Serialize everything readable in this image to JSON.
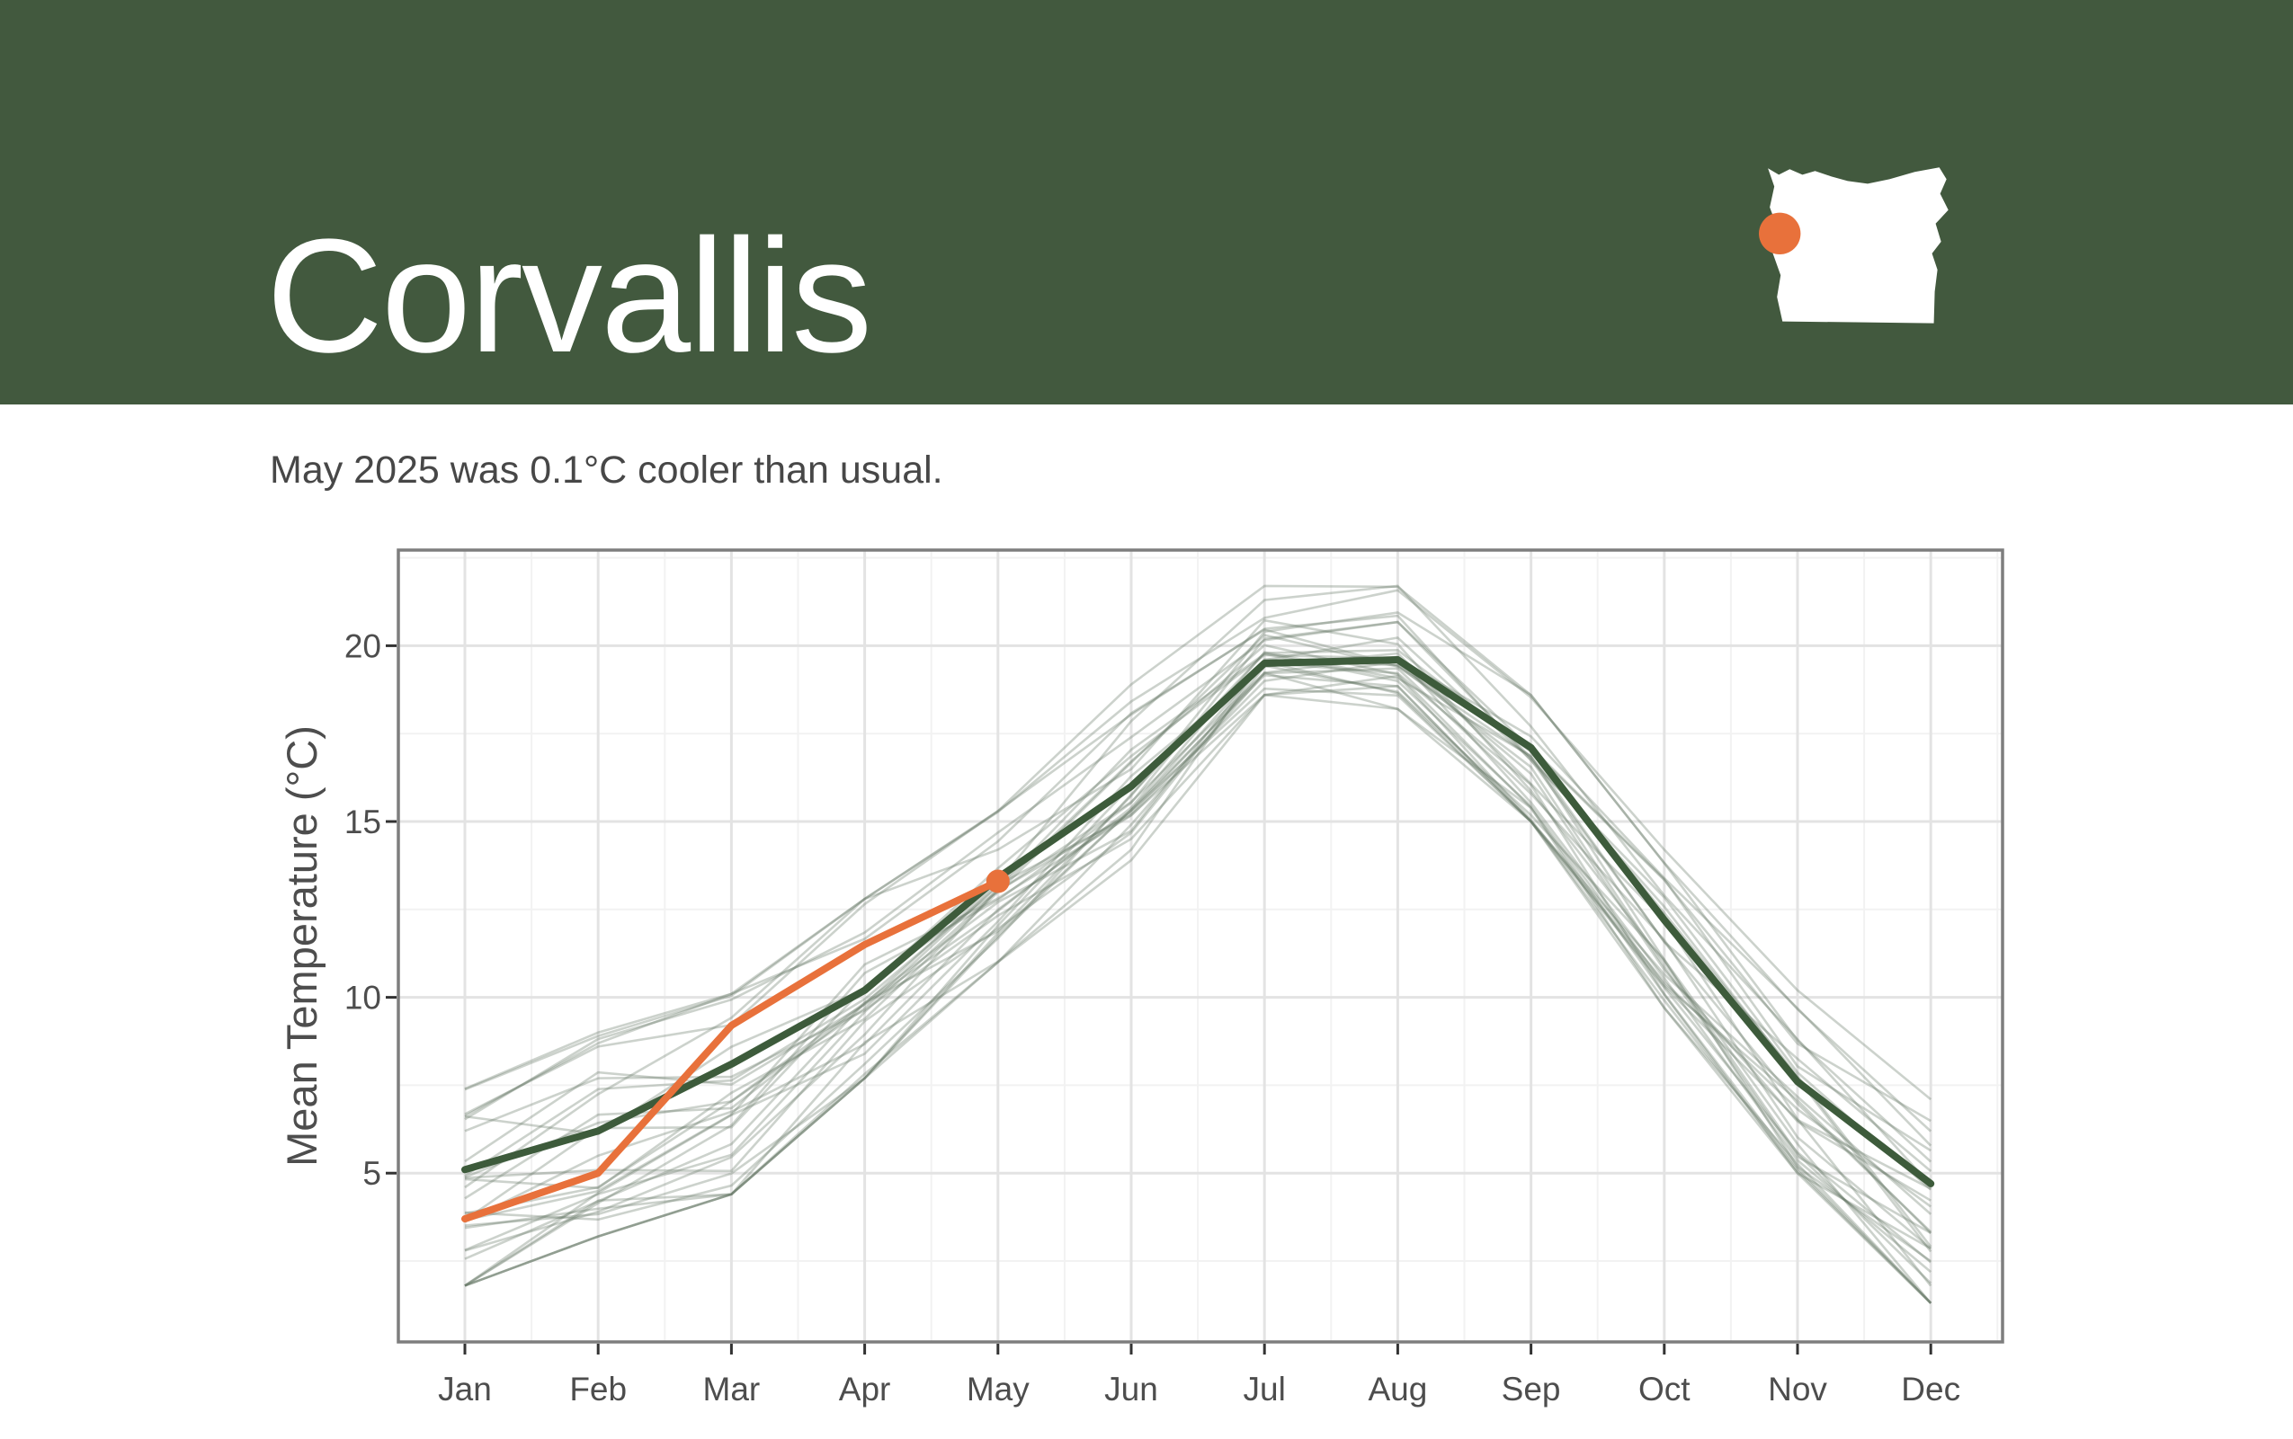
{
  "header": {
    "title": "Corvallis",
    "background_color": "#42593E",
    "map": {
      "name": "oregon-state-silhouette",
      "fill": "#FFFFFF",
      "marker_color": "#E8713B"
    }
  },
  "subtitle": "May 2025 was 0.1°C cooler than usual.",
  "chart_data": {
    "type": "line",
    "title": "",
    "xlabel": "",
    "ylabel": "Mean Temperature (°C)",
    "categories": [
      "Jan",
      "Feb",
      "Mar",
      "Apr",
      "May",
      "Jun",
      "Jul",
      "Aug",
      "Sep",
      "Oct",
      "Nov",
      "Dec"
    ],
    "y_ticks": [
      5,
      10,
      15,
      20
    ],
    "ylim": [
      0.2,
      22.7
    ],
    "grid": {
      "major_color": "#E3E3E3",
      "minor_color": "#F2F2F2",
      "minor_y_ticks": [
        2.5,
        7.5,
        12.5,
        17.5,
        22.5
      ]
    },
    "panel_border_color": "#7E7E7E",
    "axis_text_color": "#4D4D4D",
    "tick_mark_color": "#333333",
    "series": [
      {
        "name": "historical_years",
        "role": "background-spaghetti",
        "count": 30,
        "color": "#5F7460",
        "opacity": 0.32,
        "monthly_min": [
          1.8,
          3.2,
          4.4,
          7.7,
          11.0,
          13.9,
          18.6,
          18.2,
          15.0,
          9.7,
          5.0,
          1.3
        ],
        "monthly_max": [
          7.4,
          9.0,
          10.1,
          12.8,
          15.3,
          18.9,
          21.7,
          21.7,
          18.6,
          14.2,
          10.2,
          7.1
        ]
      },
      {
        "name": "normal_mean",
        "role": "mean-line",
        "color": "#3D5B3B",
        "values": [
          5.1,
          6.2,
          8.1,
          10.2,
          13.4,
          16.0,
          19.5,
          19.6,
          17.1,
          12.2,
          7.6,
          4.7
        ]
      },
      {
        "name": "2025",
        "role": "current-year-line",
        "color": "#E8713B",
        "values": [
          3.7,
          5.0,
          9.2,
          11.5,
          13.3
        ],
        "endpoint_dot": true,
        "endpoint_month": "May"
      }
    ]
  }
}
